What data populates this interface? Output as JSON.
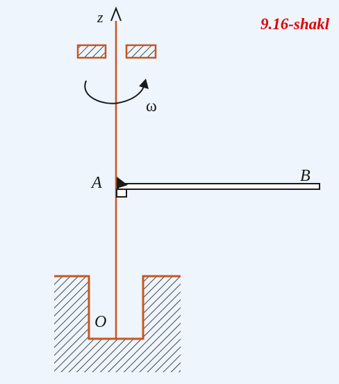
{
  "figure": {
    "label": "9.16-shakl",
    "labels": {
      "z": "z",
      "omega": "ω",
      "A": "A",
      "B": "B",
      "O": "O"
    }
  },
  "colors": {
    "background": "#eef5fd",
    "shaft": "#c8561e",
    "figure_label": "#e00000",
    "ink": "#1a1a1a"
  }
}
